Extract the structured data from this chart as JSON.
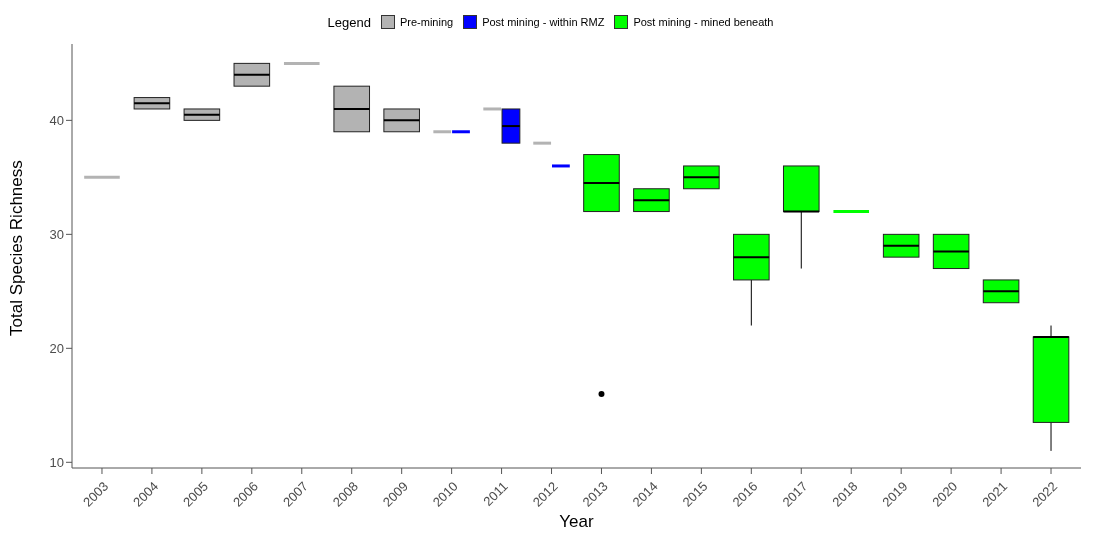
{
  "chart_data": {
    "type": "box",
    "xlabel": "Year",
    "ylabel": "Total Species Richness",
    "legend_title": "Legend",
    "legend": "top",
    "grid": false,
    "categories": [
      "2003",
      "2004",
      "2005",
      "2006",
      "2007",
      "2008",
      "2009",
      "2010",
      "2011",
      "2012",
      "2013",
      "2014",
      "2015",
      "2016",
      "2017",
      "2018",
      "2019",
      "2020",
      "2021",
      "2022"
    ],
    "ylim": [
      9.5,
      46.7
    ],
    "yticks": [
      10,
      20,
      30,
      40
    ],
    "series": [
      {
        "name": "Pre-mining",
        "color": "#b3b3b3",
        "boxes": [
          {
            "low": 35,
            "q1": 35,
            "median": 35,
            "q3": 35,
            "high": 35
          },
          {
            "low": 41,
            "q1": 41,
            "median": 41.5,
            "q3": 42,
            "high": 42
          },
          {
            "low": 40,
            "q1": 40,
            "median": 40.5,
            "q3": 41,
            "high": 41
          },
          {
            "low": 43,
            "q1": 43,
            "median": 44,
            "q3": 45,
            "high": 45
          },
          {
            "low": 45,
            "q1": 45,
            "median": 45,
            "q3": 45,
            "high": 45
          },
          {
            "low": 39,
            "q1": 39,
            "median": 41,
            "q3": 43,
            "high": 43
          },
          {
            "low": 39,
            "q1": 39,
            "median": 40,
            "q3": 41,
            "high": 41
          },
          {
            "low": 39,
            "q1": 39,
            "median": 39,
            "q3": 39,
            "high": 39
          },
          {
            "low": 41,
            "q1": 41,
            "median": 41,
            "q3": 41,
            "high": 41
          },
          {
            "low": 38,
            "q1": 38,
            "median": 38,
            "q3": 38,
            "high": 38
          },
          null,
          null,
          null,
          null,
          null,
          null,
          null,
          null,
          null,
          null
        ]
      },
      {
        "name": "Post mining - within RMZ",
        "color": "#0000ff",
        "boxes": [
          null,
          null,
          null,
          null,
          null,
          null,
          null,
          {
            "low": 39,
            "q1": 39,
            "median": 39,
            "q3": 39,
            "high": 39
          },
          {
            "low": 38,
            "q1": 38,
            "median": 39.5,
            "q3": 41,
            "high": 41
          },
          {
            "low": 36,
            "q1": 36,
            "median": 36,
            "q3": 36,
            "high": 36
          },
          null,
          null,
          null,
          null,
          null,
          null,
          null,
          null,
          null,
          null
        ]
      },
      {
        "name": "Post mining - mined beneath",
        "color": "#00ff00",
        "boxes": [
          null,
          null,
          null,
          null,
          null,
          null,
          null,
          null,
          null,
          null,
          {
            "low": 32,
            "q1": 32,
            "median": 34.5,
            "q3": 37,
            "high": 37,
            "outliers": [
              16
            ]
          },
          {
            "low": 32,
            "q1": 32,
            "median": 33,
            "q3": 34,
            "high": 34
          },
          {
            "low": 34,
            "q1": 34,
            "median": 35,
            "q3": 36,
            "high": 36
          },
          {
            "low": 22,
            "q1": 26,
            "median": 28,
            "q3": 30,
            "high": 30
          },
          {
            "low": 27,
            "q1": 32,
            "median": 32,
            "q3": 36,
            "high": 36
          },
          {
            "low": 32,
            "q1": 32,
            "median": 32,
            "q3": 32,
            "high": 32
          },
          {
            "low": 28,
            "q1": 28,
            "median": 29,
            "q3": 30,
            "high": 30
          },
          {
            "low": 27,
            "q1": 27,
            "median": 28.5,
            "q3": 30,
            "high": 30
          },
          {
            "low": 24,
            "q1": 24,
            "median": 25,
            "q3": 26,
            "high": 26
          },
          {
            "low": 11,
            "q1": 13.5,
            "median": 21,
            "q3": 21,
            "high": 22
          }
        ]
      }
    ]
  }
}
